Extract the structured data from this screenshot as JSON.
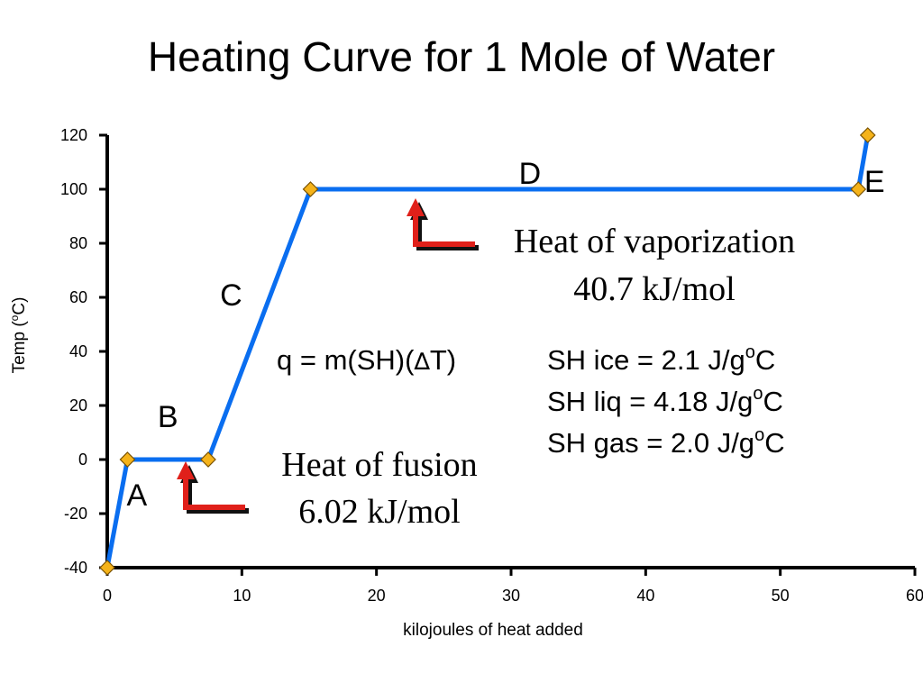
{
  "slide": {
    "title": "Heating Curve for 1 Mole of Water"
  },
  "chart_data": {
    "type": "line",
    "title": "Heating Curve for 1 Mole of Water",
    "xlabel": "kilojoules of heat added",
    "ylabel": "Temp (oC)",
    "xlim": [
      0,
      60
    ],
    "ylim": [
      -40,
      120
    ],
    "x_ticks": [
      0,
      10,
      20,
      30,
      40,
      50,
      60
    ],
    "y_ticks": [
      -40,
      -20,
      0,
      20,
      40,
      60,
      80,
      100,
      120
    ],
    "grid": false,
    "legend": "none",
    "series": [
      {
        "x": [
          0,
          1.5,
          7.5,
          15.1,
          55.8,
          56.5
        ],
        "y": [
          -40,
          0,
          0,
          100,
          100,
          120
        ]
      }
    ],
    "line_color": "#0a6ef0",
    "marker_color": "#f5b31a",
    "marker_edge_color": "#7a5200"
  },
  "annotations": {
    "region_labels": [
      {
        "text": "A",
        "x": 2.2,
        "y": -17
      },
      {
        "text": "B",
        "x": 4.5,
        "y": 12
      },
      {
        "text": "C",
        "x": 9.2,
        "y": 57
      },
      {
        "text": "D",
        "x": 31.4,
        "y": 102
      },
      {
        "text": "E",
        "x": 57.0,
        "y": 99
      }
    ],
    "fusion": {
      "line1": "Heat of fusion",
      "line2": "6.02 kJ/mol"
    },
    "vaporization": {
      "line1": "Heat of vaporization",
      "line2": "40.7 kJ/mol"
    },
    "equation": {
      "prefix": "q = m(SH)(",
      "delta": "∆",
      "suffix": "T)"
    },
    "specific_heats": [
      {
        "prefix": "SH ice = 2.1 J/g",
        "sup": "o",
        "suffix": "C"
      },
      {
        "prefix": "SH liq = 4.18 J/g",
        "sup": "o",
        "suffix": "C"
      },
      {
        "prefix": "SH gas = 2.0 J/g",
        "sup": "o",
        "suffix": "C"
      }
    ],
    "arrow_color": "#e0201a"
  }
}
